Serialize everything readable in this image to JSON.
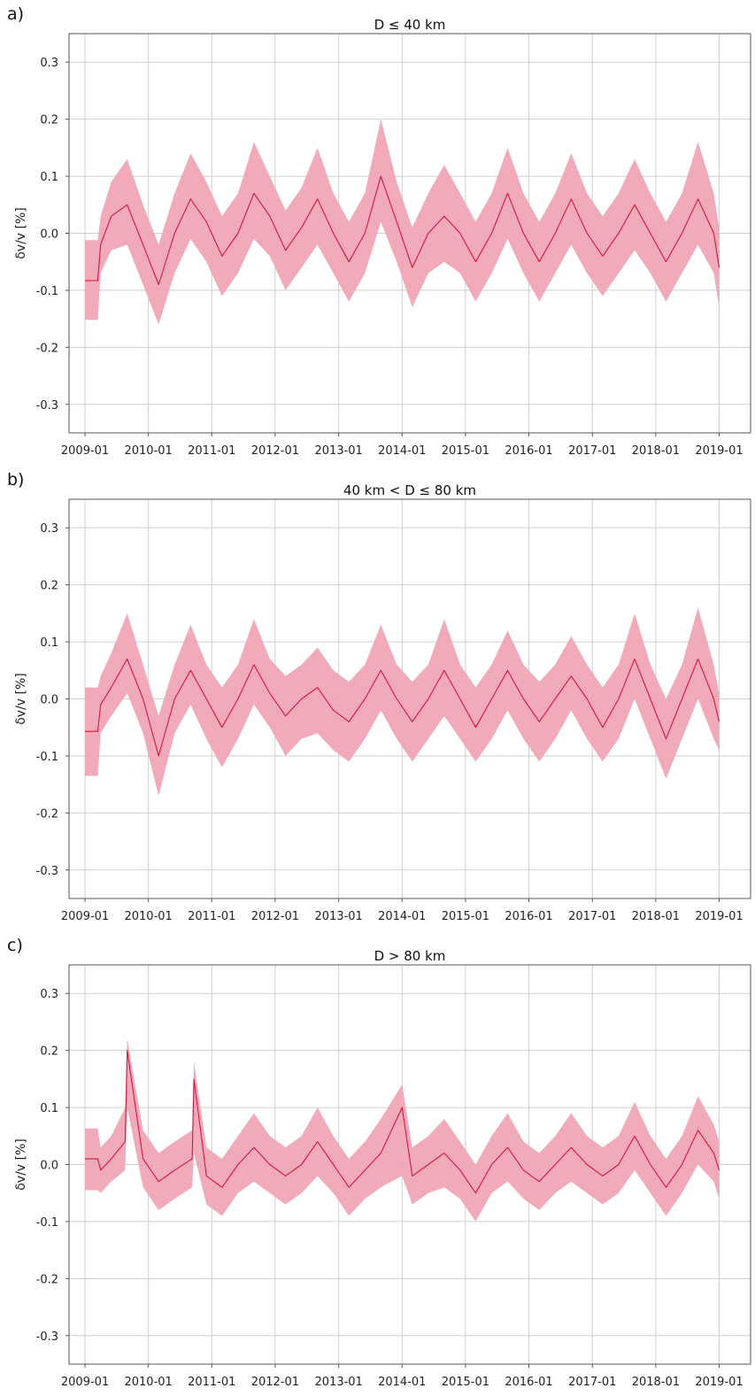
{
  "chart_data": [
    {
      "panel_label": "a)",
      "type": "line",
      "title": "D ≤ 40 km",
      "ylabel": "δv/v [%]",
      "xlabel": "",
      "xlim": [
        "2008-10-01",
        "2019-07-01"
      ],
      "ylim": [
        -0.35,
        0.35
      ],
      "x_ticks": [
        "2009-01",
        "2010-01",
        "2011-01",
        "2012-01",
        "2013-01",
        "2014-01",
        "2015-01",
        "2016-01",
        "2017-01",
        "2018-01",
        "2019-01"
      ],
      "y_ticks": [
        "0.3",
        "0.2",
        "0.1",
        "0.0",
        "-0.1",
        "-0.2",
        "-0.3"
      ],
      "grid": true,
      "colors": {
        "mean": "#d8143c",
        "band": "#f0a5b5"
      },
      "series": [
        {
          "x": [
            "2009-01-01",
            "2009-03-15",
            "2009-04-01",
            "2009-06-01",
            "2009-09-01",
            "2009-12-01",
            "2010-03-01",
            "2010-06-01",
            "2010-09-01",
            "2010-12-01",
            "2011-03-01",
            "2011-06-01",
            "2011-09-01",
            "2011-12-01",
            "2012-03-01",
            "2012-06-01",
            "2012-09-01",
            "2012-12-01",
            "2013-03-01",
            "2013-06-01",
            "2013-09-01",
            "2013-12-01",
            "2014-03-01",
            "2014-06-01",
            "2014-09-01",
            "2014-12-01",
            "2015-03-01",
            "2015-06-01",
            "2015-09-01",
            "2015-12-01",
            "2016-03-01",
            "2016-06-01",
            "2016-09-01",
            "2016-12-01",
            "2017-03-01",
            "2017-06-01",
            "2017-09-01",
            "2017-12-01",
            "2018-03-01",
            "2018-06-01",
            "2018-09-01",
            "2018-12-01",
            "2019-01-01"
          ],
          "mean": [
            -0.083,
            -0.083,
            -0.02,
            0.03,
            0.05,
            -0.02,
            -0.09,
            0.0,
            0.06,
            0.02,
            -0.04,
            0.0,
            0.07,
            0.03,
            -0.03,
            0.01,
            0.06,
            0.0,
            -0.05,
            0.0,
            0.1,
            0.02,
            -0.06,
            0.0,
            0.03,
            0.0,
            -0.05,
            0.0,
            0.07,
            0.0,
            -0.05,
            0.0,
            0.06,
            0.0,
            -0.04,
            0.0,
            0.05,
            0.0,
            -0.05,
            0.0,
            0.06,
            0.0,
            -0.06
          ],
          "lower": [
            -0.152,
            -0.152,
            -0.07,
            -0.03,
            -0.02,
            -0.09,
            -0.16,
            -0.07,
            -0.01,
            -0.05,
            -0.11,
            -0.07,
            -0.01,
            -0.04,
            -0.1,
            -0.06,
            -0.02,
            -0.07,
            -0.12,
            -0.07,
            0.02,
            -0.05,
            -0.13,
            -0.07,
            -0.05,
            -0.07,
            -0.12,
            -0.07,
            -0.01,
            -0.07,
            -0.12,
            -0.07,
            -0.02,
            -0.07,
            -0.11,
            -0.07,
            -0.03,
            -0.07,
            -0.12,
            -0.07,
            -0.02,
            -0.07,
            -0.13
          ],
          "upper": [
            -0.012,
            -0.012,
            0.03,
            0.09,
            0.13,
            0.05,
            -0.02,
            0.07,
            0.14,
            0.09,
            0.03,
            0.07,
            0.16,
            0.1,
            0.04,
            0.08,
            0.15,
            0.07,
            0.02,
            0.07,
            0.2,
            0.09,
            0.01,
            0.07,
            0.12,
            0.07,
            0.02,
            0.07,
            0.15,
            0.07,
            0.02,
            0.07,
            0.14,
            0.07,
            0.03,
            0.07,
            0.13,
            0.07,
            0.02,
            0.07,
            0.16,
            0.07,
            0.01
          ]
        }
      ]
    },
    {
      "panel_label": "b)",
      "type": "line",
      "title": "40 km < D ≤ 80 km",
      "ylabel": "δv/v [%]",
      "xlabel": "",
      "xlim": [
        "2008-10-01",
        "2019-07-01"
      ],
      "ylim": [
        -0.35,
        0.35
      ],
      "x_ticks": [
        "2009-01",
        "2010-01",
        "2011-01",
        "2012-01",
        "2013-01",
        "2014-01",
        "2015-01",
        "2016-01",
        "2017-01",
        "2018-01",
        "2019-01"
      ],
      "y_ticks": [
        "0.3",
        "0.2",
        "0.1",
        "0.0",
        "-0.1",
        "-0.2",
        "-0.3"
      ],
      "grid": true,
      "colors": {
        "mean": "#d8143c",
        "band": "#f0a5b5"
      },
      "series": [
        {
          "x": [
            "2009-01-01",
            "2009-03-15",
            "2009-04-01",
            "2009-06-01",
            "2009-09-01",
            "2009-12-01",
            "2010-03-01",
            "2010-06-01",
            "2010-09-01",
            "2010-12-01",
            "2011-03-01",
            "2011-06-01",
            "2011-09-01",
            "2011-12-01",
            "2012-03-01",
            "2012-06-01",
            "2012-09-01",
            "2012-12-01",
            "2013-03-01",
            "2013-06-01",
            "2013-09-01",
            "2013-12-01",
            "2014-03-01",
            "2014-06-01",
            "2014-09-01",
            "2014-12-01",
            "2015-03-01",
            "2015-06-01",
            "2015-09-01",
            "2015-12-01",
            "2016-03-01",
            "2016-06-01",
            "2016-09-01",
            "2016-12-01",
            "2017-03-01",
            "2017-06-01",
            "2017-09-01",
            "2017-12-01",
            "2018-03-01",
            "2018-06-01",
            "2018-09-01",
            "2018-12-01",
            "2019-01-01"
          ],
          "mean": [
            -0.057,
            -0.057,
            -0.01,
            0.02,
            0.07,
            0.0,
            -0.1,
            0.0,
            0.05,
            0.0,
            -0.05,
            0.0,
            0.06,
            0.01,
            -0.03,
            0.0,
            0.02,
            -0.02,
            -0.04,
            0.0,
            0.05,
            0.0,
            -0.04,
            0.0,
            0.05,
            0.0,
            -0.05,
            0.0,
            0.05,
            0.0,
            -0.04,
            0.0,
            0.04,
            0.0,
            -0.05,
            0.0,
            0.07,
            0.0,
            -0.07,
            0.0,
            0.07,
            0.0,
            -0.04
          ],
          "lower": [
            -0.135,
            -0.135,
            -0.06,
            -0.03,
            0.01,
            -0.06,
            -0.17,
            -0.06,
            -0.01,
            -0.07,
            -0.12,
            -0.07,
            -0.01,
            -0.05,
            -0.1,
            -0.07,
            -0.06,
            -0.09,
            -0.11,
            -0.07,
            -0.02,
            -0.07,
            -0.11,
            -0.07,
            -0.03,
            -0.07,
            -0.11,
            -0.07,
            -0.02,
            -0.07,
            -0.11,
            -0.07,
            -0.02,
            -0.07,
            -0.11,
            -0.07,
            0.0,
            -0.07,
            -0.14,
            -0.07,
            0.0,
            -0.07,
            -0.09
          ],
          "upper": [
            0.02,
            0.02,
            0.04,
            0.08,
            0.15,
            0.06,
            -0.03,
            0.06,
            0.13,
            0.06,
            0.02,
            0.06,
            0.14,
            0.07,
            0.04,
            0.06,
            0.09,
            0.05,
            0.03,
            0.06,
            0.13,
            0.06,
            0.03,
            0.06,
            0.14,
            0.06,
            0.02,
            0.06,
            0.12,
            0.06,
            0.03,
            0.06,
            0.11,
            0.06,
            0.02,
            0.06,
            0.15,
            0.06,
            0.0,
            0.06,
            0.16,
            0.06,
            0.01
          ]
        }
      ]
    },
    {
      "panel_label": "c)",
      "type": "line",
      "title": "D > 80 km",
      "ylabel": "δv/v [%]",
      "xlabel": "",
      "xlim": [
        "2008-10-01",
        "2019-07-01"
      ],
      "ylim": [
        -0.35,
        0.35
      ],
      "x_ticks": [
        "2009-01",
        "2010-01",
        "2011-01",
        "2012-01",
        "2013-01",
        "2014-01",
        "2015-01",
        "2016-01",
        "2017-01",
        "2018-01",
        "2019-01"
      ],
      "y_ticks": [
        "0.3",
        "0.2",
        "0.1",
        "0.0",
        "-0.1",
        "-0.2",
        "-0.3"
      ],
      "grid": true,
      "colors": {
        "mean": "#d8143c",
        "band": "#f0a5b5"
      },
      "series": [
        {
          "x": [
            "2009-01-01",
            "2009-03-15",
            "2009-04-01",
            "2009-06-01",
            "2009-08-20",
            "2009-09-01",
            "2009-12-01",
            "2010-03-01",
            "2010-06-01",
            "2010-09-10",
            "2010-09-20",
            "2010-12-01",
            "2011-03-01",
            "2011-06-01",
            "2011-09-01",
            "2011-12-01",
            "2012-03-01",
            "2012-06-01",
            "2012-09-01",
            "2012-12-01",
            "2013-03-01",
            "2013-06-01",
            "2013-09-01",
            "2014-01-01",
            "2014-03-01",
            "2014-06-01",
            "2014-09-01",
            "2014-12-01",
            "2015-03-01",
            "2015-06-01",
            "2015-09-01",
            "2015-12-01",
            "2016-03-01",
            "2016-06-01",
            "2016-09-01",
            "2016-12-01",
            "2017-03-01",
            "2017-06-01",
            "2017-09-01",
            "2017-12-01",
            "2018-03-01",
            "2018-06-01",
            "2018-09-01",
            "2018-12-01",
            "2019-01-01"
          ],
          "mean": [
            0.01,
            0.01,
            -0.01,
            0.01,
            0.04,
            0.2,
            0.01,
            -0.03,
            -0.01,
            0.01,
            0.15,
            -0.02,
            -0.04,
            0.0,
            0.03,
            0.0,
            -0.02,
            0.0,
            0.04,
            0.0,
            -0.04,
            -0.01,
            0.02,
            0.1,
            -0.02,
            0.0,
            0.02,
            -0.01,
            -0.05,
            0.0,
            0.03,
            -0.01,
            -0.03,
            0.0,
            0.03,
            0.0,
            -0.02,
            0.0,
            0.05,
            0.0,
            -0.04,
            0.0,
            0.06,
            0.02,
            -0.01
          ],
          "lower": [
            -0.045,
            -0.045,
            -0.05,
            -0.03,
            -0.01,
            0.1,
            -0.04,
            -0.08,
            -0.06,
            -0.04,
            0.02,
            -0.07,
            -0.09,
            -0.05,
            -0.03,
            -0.05,
            -0.07,
            -0.05,
            -0.02,
            -0.05,
            -0.09,
            -0.06,
            -0.04,
            -0.02,
            -0.07,
            -0.05,
            -0.04,
            -0.06,
            -0.1,
            -0.05,
            -0.03,
            -0.06,
            -0.08,
            -0.05,
            -0.03,
            -0.05,
            -0.07,
            -0.05,
            -0.01,
            -0.05,
            -0.09,
            -0.05,
            0.0,
            -0.03,
            -0.06
          ],
          "upper": [
            0.063,
            0.063,
            0.03,
            0.05,
            0.1,
            0.22,
            0.06,
            0.02,
            0.04,
            0.06,
            0.18,
            0.03,
            0.01,
            0.05,
            0.09,
            0.05,
            0.03,
            0.05,
            0.1,
            0.05,
            0.01,
            0.04,
            0.08,
            0.14,
            0.03,
            0.05,
            0.08,
            0.04,
            0.0,
            0.05,
            0.09,
            0.04,
            0.02,
            0.05,
            0.09,
            0.05,
            0.03,
            0.05,
            0.11,
            0.05,
            0.01,
            0.05,
            0.12,
            0.07,
            0.04
          ]
        }
      ]
    }
  ]
}
